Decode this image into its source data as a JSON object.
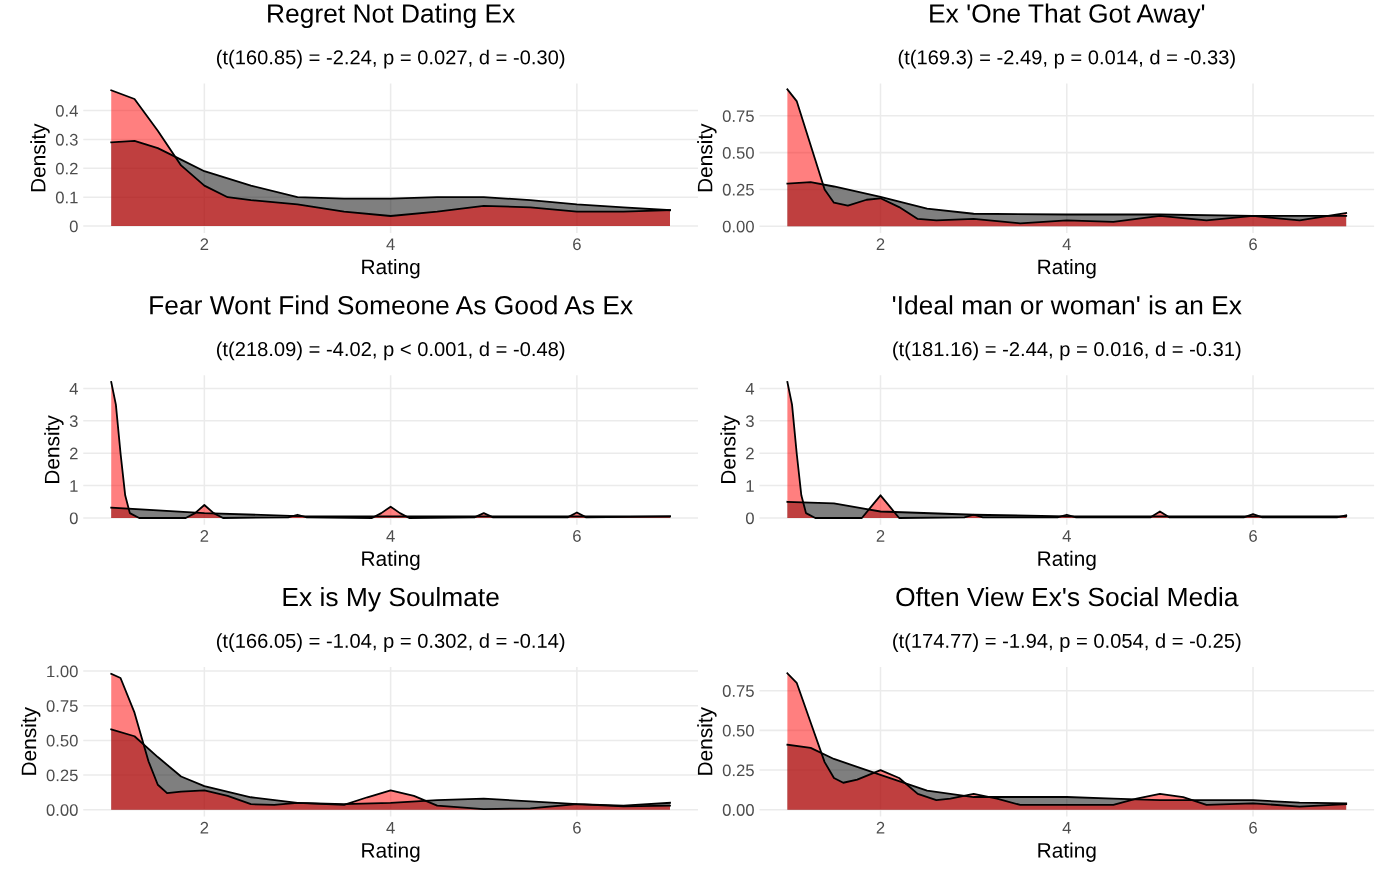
{
  "chart_data": [
    {
      "type": "area",
      "title": "Regret Not Dating Ex",
      "subtitle": "(t(160.85) = -2.24, p = 0.027, d = -0.30)",
      "xlabel": "Rating",
      "ylabel": "Density",
      "xlim": [
        0.7,
        7.3
      ],
      "xticks": [
        2,
        4,
        6
      ],
      "ylim": [
        -0.024,
        0.494
      ],
      "yticks": [
        0,
        0.1,
        0.2,
        0.3,
        0.4
      ],
      "grid": true,
      "series": [
        {
          "color": "#000000",
          "x": [
            1,
            1.25,
            1.5,
            1.75,
            2,
            2.5,
            3,
            3.5,
            4,
            4.5,
            5,
            5.5,
            6,
            6.5,
            7
          ],
          "values": [
            0.29,
            0.295,
            0.27,
            0.23,
            0.19,
            0.14,
            0.1,
            0.095,
            0.095,
            0.1,
            0.1,
            0.09,
            0.075,
            0.065,
            0.055
          ]
        },
        {
          "color": "#ff0000",
          "x": [
            1,
            1.25,
            1.5,
            1.75,
            2,
            2.25,
            2.5,
            3,
            3.5,
            4,
            4.5,
            5,
            5.5,
            6,
            6.5,
            7
          ],
          "values": [
            0.47,
            0.44,
            0.33,
            0.21,
            0.14,
            0.1,
            0.09,
            0.075,
            0.05,
            0.035,
            0.05,
            0.07,
            0.065,
            0.05,
            0.05,
            0.055
          ]
        }
      ]
    },
    {
      "type": "area",
      "title": "Ex 'One That Got Away'",
      "subtitle": "(t(169.3) = -2.49, p = 0.014, d = -0.33)",
      "xlabel": "Rating",
      "ylabel": "Density",
      "xlim": [
        0.7,
        7.3
      ],
      "xticks": [
        2,
        4,
        6
      ],
      "ylim": [
        -0.046,
        0.97
      ],
      "yticks": [
        {
          "value": 0,
          "label": "0.00"
        },
        {
          "value": 0.25,
          "label": "0.25"
        },
        {
          "value": 0.5,
          "label": "0.50"
        },
        {
          "value": 0.75,
          "label": "0.75"
        }
      ],
      "grid": true,
      "series": [
        {
          "color": "#000000",
          "x": [
            1,
            1.25,
            1.5,
            2,
            2.5,
            3,
            4,
            5,
            6,
            7
          ],
          "values": [
            0.29,
            0.3,
            0.27,
            0.2,
            0.12,
            0.085,
            0.08,
            0.08,
            0.07,
            0.07
          ]
        },
        {
          "color": "#ff0000",
          "x": [
            1,
            1.1,
            1.25,
            1.4,
            1.5,
            1.65,
            1.85,
            2,
            2.2,
            2.4,
            2.6,
            3,
            3.5,
            4,
            4.5,
            5,
            5.5,
            6,
            6.5,
            7
          ],
          "values": [
            0.93,
            0.85,
            0.55,
            0.25,
            0.16,
            0.14,
            0.18,
            0.19,
            0.13,
            0.05,
            0.04,
            0.05,
            0.02,
            0.04,
            0.03,
            0.07,
            0.04,
            0.07,
            0.04,
            0.09
          ]
        }
      ]
    },
    {
      "type": "area",
      "title": "Fear Wont Find Someone As Good As Ex",
      "subtitle": "(t(218.09) = -4.02, p < 0.001, d = -0.48)",
      "xlabel": "Rating",
      "ylabel": "Density",
      "xlim": [
        0.7,
        7.3
      ],
      "xticks": [
        2,
        4,
        6
      ],
      "ylim": [
        -0.21,
        4.41
      ],
      "yticks": [
        0,
        1,
        2,
        3,
        4
      ],
      "grid": true,
      "series": [
        {
          "color": "#000000",
          "x": [
            1,
            2,
            3,
            4,
            5,
            6,
            7
          ],
          "values": [
            0.32,
            0.15,
            0.06,
            0.05,
            0.05,
            0.05,
            0.05
          ]
        },
        {
          "color": "#ff0000",
          "x": [
            1,
            1.05,
            1.1,
            1.15,
            1.2,
            1.3,
            1.8,
            1.9,
            2,
            2.1,
            2.2,
            2.9,
            3,
            3.1,
            3.8,
            3.9,
            4,
            4.1,
            4.2,
            4.9,
            5,
            5.1,
            5.9,
            6,
            6.1,
            7
          ],
          "values": [
            4.2,
            3.5,
            2.0,
            0.7,
            0.15,
            0,
            0,
            0.15,
            0.4,
            0.15,
            0,
            0.02,
            0.1,
            0.02,
            0,
            0.15,
            0.35,
            0.15,
            0,
            0.02,
            0.15,
            0.02,
            0.02,
            0.17,
            0.02,
            0.05
          ]
        }
      ]
    },
    {
      "type": "area",
      "title": "'Ideal man or woman' is an Ex",
      "subtitle": "(t(181.16) = -2.44, p = 0.016, d = -0.31)",
      "xlabel": "Rating",
      "ylabel": "Density",
      "xlim": [
        0.7,
        7.3
      ],
      "xticks": [
        2,
        4,
        6
      ],
      "ylim": [
        -0.21,
        4.41
      ],
      "yticks": [
        0,
        1,
        2,
        3,
        4
      ],
      "grid": true,
      "series": [
        {
          "color": "#000000",
          "x": [
            1,
            1.5,
            2,
            3,
            4,
            5,
            6,
            7
          ],
          "values": [
            0.5,
            0.45,
            0.2,
            0.1,
            0.05,
            0.05,
            0.05,
            0.05
          ]
        },
        {
          "color": "#ff0000",
          "x": [
            1,
            1.05,
            1.1,
            1.15,
            1.2,
            1.3,
            1.8,
            1.9,
            2,
            2.1,
            2.2,
            2.9,
            3,
            3.1,
            3.9,
            4,
            4.1,
            4.9,
            5,
            5.1,
            5.9,
            6,
            6.1,
            6.9,
            7
          ],
          "values": [
            4.2,
            3.5,
            2.0,
            0.7,
            0.15,
            0,
            0,
            0.35,
            0.7,
            0.35,
            0,
            0.02,
            0.1,
            0.02,
            0.02,
            0.1,
            0.02,
            0.02,
            0.2,
            0.02,
            0.02,
            0.12,
            0.02,
            0.02,
            0.08
          ]
        }
      ]
    },
    {
      "type": "area",
      "title": "Ex is My Soulmate",
      "subtitle": "(t(166.05) = -1.04, p = 0.302, d = -0.14)",
      "xlabel": "Rating",
      "ylabel": "Density",
      "xlim": [
        0.7,
        7.3
      ],
      "xticks": [
        2,
        4,
        6
      ],
      "ylim": [
        -0.049,
        1.03
      ],
      "yticks": [
        {
          "value": 0,
          "label": "0.00"
        },
        {
          "value": 0.25,
          "label": "0.25"
        },
        {
          "value": 0.5,
          "label": "0.50"
        },
        {
          "value": 0.75,
          "label": "0.75"
        },
        {
          "value": 1,
          "label": "1.00"
        }
      ],
      "grid": true,
      "series": [
        {
          "color": "#000000",
          "x": [
            1,
            1.25,
            1.5,
            1.75,
            2,
            2.5,
            3,
            3.5,
            4,
            4.5,
            5,
            5.5,
            6,
            6.5,
            7
          ],
          "values": [
            0.58,
            0.53,
            0.38,
            0.24,
            0.17,
            0.09,
            0.05,
            0.04,
            0.05,
            0.07,
            0.08,
            0.06,
            0.04,
            0.03,
            0.05
          ]
        },
        {
          "color": "#ff0000",
          "x": [
            1,
            1.1,
            1.25,
            1.4,
            1.5,
            1.6,
            1.75,
            2,
            2.25,
            2.5,
            2.75,
            3,
            3.5,
            3.75,
            4,
            4.25,
            4.5,
            5,
            5.5,
            6,
            6.5,
            7
          ],
          "values": [
            0.98,
            0.95,
            0.7,
            0.35,
            0.18,
            0.12,
            0.13,
            0.14,
            0.1,
            0.04,
            0.035,
            0.05,
            0.035,
            0.09,
            0.14,
            0.1,
            0.03,
            0.005,
            0.01,
            0.04,
            0.025,
            0.03
          ]
        }
      ]
    },
    {
      "type": "area",
      "title": "Often View Ex's Social Media",
      "subtitle": "(t(174.77) = -1.94, p = 0.054, d = -0.25)",
      "xlabel": "Rating",
      "ylabel": "Density",
      "xlim": [
        0.7,
        7.3
      ],
      "xticks": [
        2,
        4,
        6
      ],
      "ylim": [
        -0.043,
        0.9
      ],
      "yticks": [
        {
          "value": 0,
          "label": "0.00"
        },
        {
          "value": 0.25,
          "label": "0.25"
        },
        {
          "value": 0.5,
          "label": "0.50"
        },
        {
          "value": 0.75,
          "label": "0.75"
        }
      ],
      "grid": true,
      "series": [
        {
          "color": "#000000",
          "x": [
            1,
            1.25,
            1.5,
            2,
            2.5,
            3,
            3.5,
            4,
            4.5,
            5,
            5.5,
            6,
            6.5,
            7
          ],
          "values": [
            0.41,
            0.39,
            0.32,
            0.22,
            0.12,
            0.08,
            0.08,
            0.08,
            0.07,
            0.06,
            0.06,
            0.06,
            0.045,
            0.04
          ]
        },
        {
          "color": "#ff0000",
          "x": [
            1,
            1.1,
            1.25,
            1.4,
            1.5,
            1.6,
            1.75,
            2,
            2.2,
            2.4,
            2.6,
            2.75,
            3,
            3.25,
            3.5,
            4,
            4.5,
            4.75,
            5,
            5.25,
            5.5,
            6,
            6.5,
            7
          ],
          "values": [
            0.86,
            0.8,
            0.55,
            0.3,
            0.2,
            0.17,
            0.19,
            0.25,
            0.2,
            0.1,
            0.06,
            0.07,
            0.1,
            0.07,
            0.03,
            0.03,
            0.03,
            0.07,
            0.1,
            0.08,
            0.03,
            0.04,
            0.02,
            0.035
          ]
        }
      ]
    }
  ]
}
